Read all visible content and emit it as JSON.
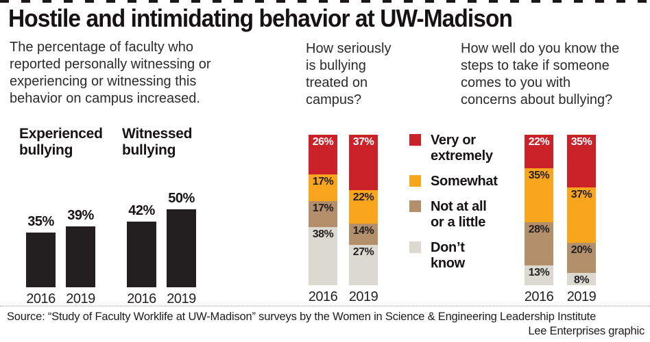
{
  "title": "Hostile and intimidating behavior at UW-Madison",
  "intro": "The percentage of faculty who\nreported personally witnessing or\nexperiencing or witnessing this\nbehavior on campus increased.",
  "question_seriously": "How seriously\nis bullying\ntreated on\ncampus?",
  "question_steps": "How well do you know the\nsteps to take if someone\ncomes to you with\nconcerns about bullying?",
  "group_headers": [
    "Experienced\nbullying",
    "Witnessed\nbullying"
  ],
  "colors": {
    "bar_black": "#231f20",
    "red": "#cb2129",
    "orange": "#f9a51d",
    "tan": "#b3906b",
    "light_gray": "#dcd9d0"
  },
  "legend": {
    "items": [
      {
        "label": "Very or\nextremely",
        "color": "#cb2129"
      },
      {
        "label": "Somewhat",
        "color": "#f9a51d"
      },
      {
        "label": "Not at all\nor a little",
        "color": "#b3906b"
      },
      {
        "label": "Don’t\nknow",
        "color": "#dcd9d0"
      }
    ]
  },
  "chart_data": [
    {
      "type": "bar",
      "title": "The percentage of faculty who reported personally witnessing or experiencing or witnessing this behavior on campus increased.",
      "unit": "%",
      "bar_color": "#231f20",
      "ylim": [
        0,
        50
      ],
      "groups": [
        {
          "label": "Experienced bullying",
          "categories": [
            "2016",
            "2019"
          ],
          "values": [
            35,
            39
          ]
        },
        {
          "label": "Witnessed bullying",
          "categories": [
            "2016",
            "2019"
          ],
          "values": [
            42,
            50
          ]
        }
      ]
    },
    {
      "type": "stacked-bar",
      "title": "How seriously is bullying treated on campus?",
      "unit": "%",
      "categories": [
        "2016",
        "2019"
      ],
      "series": [
        {
          "name": "Very or extremely",
          "color": "#cb2129",
          "values": [
            26,
            37
          ]
        },
        {
          "name": "Somewhat",
          "color": "#f9a51d",
          "values": [
            17,
            22
          ]
        },
        {
          "name": "Not at all or a little",
          "color": "#b3906b",
          "values": [
            17,
            14
          ]
        },
        {
          "name": "Don’t know",
          "color": "#dcd9d0",
          "values": [
            38,
            27
          ]
        }
      ]
    },
    {
      "type": "stacked-bar",
      "title": "How well do you know the steps to take if someone comes to you with concerns about bullying?",
      "unit": "%",
      "categories": [
        "2016",
        "2019"
      ],
      "series": [
        {
          "name": "Very or extremely",
          "color": "#cb2129",
          "values": [
            22,
            35
          ]
        },
        {
          "name": "Somewhat",
          "color": "#f9a51d",
          "values": [
            35,
            37
          ]
        },
        {
          "name": "Not at all or a little",
          "color": "#b3906b",
          "values": [
            28,
            20
          ]
        },
        {
          "name": "Don’t know",
          "color": "#dcd9d0",
          "values": [
            13,
            8
          ]
        }
      ]
    }
  ],
  "source": "Source: “Study of Faculty Worklife at UW-Madison” surveys by the Women in Science & Engineering Leadership Institute",
  "credit": "Lee Enterprises graphic"
}
